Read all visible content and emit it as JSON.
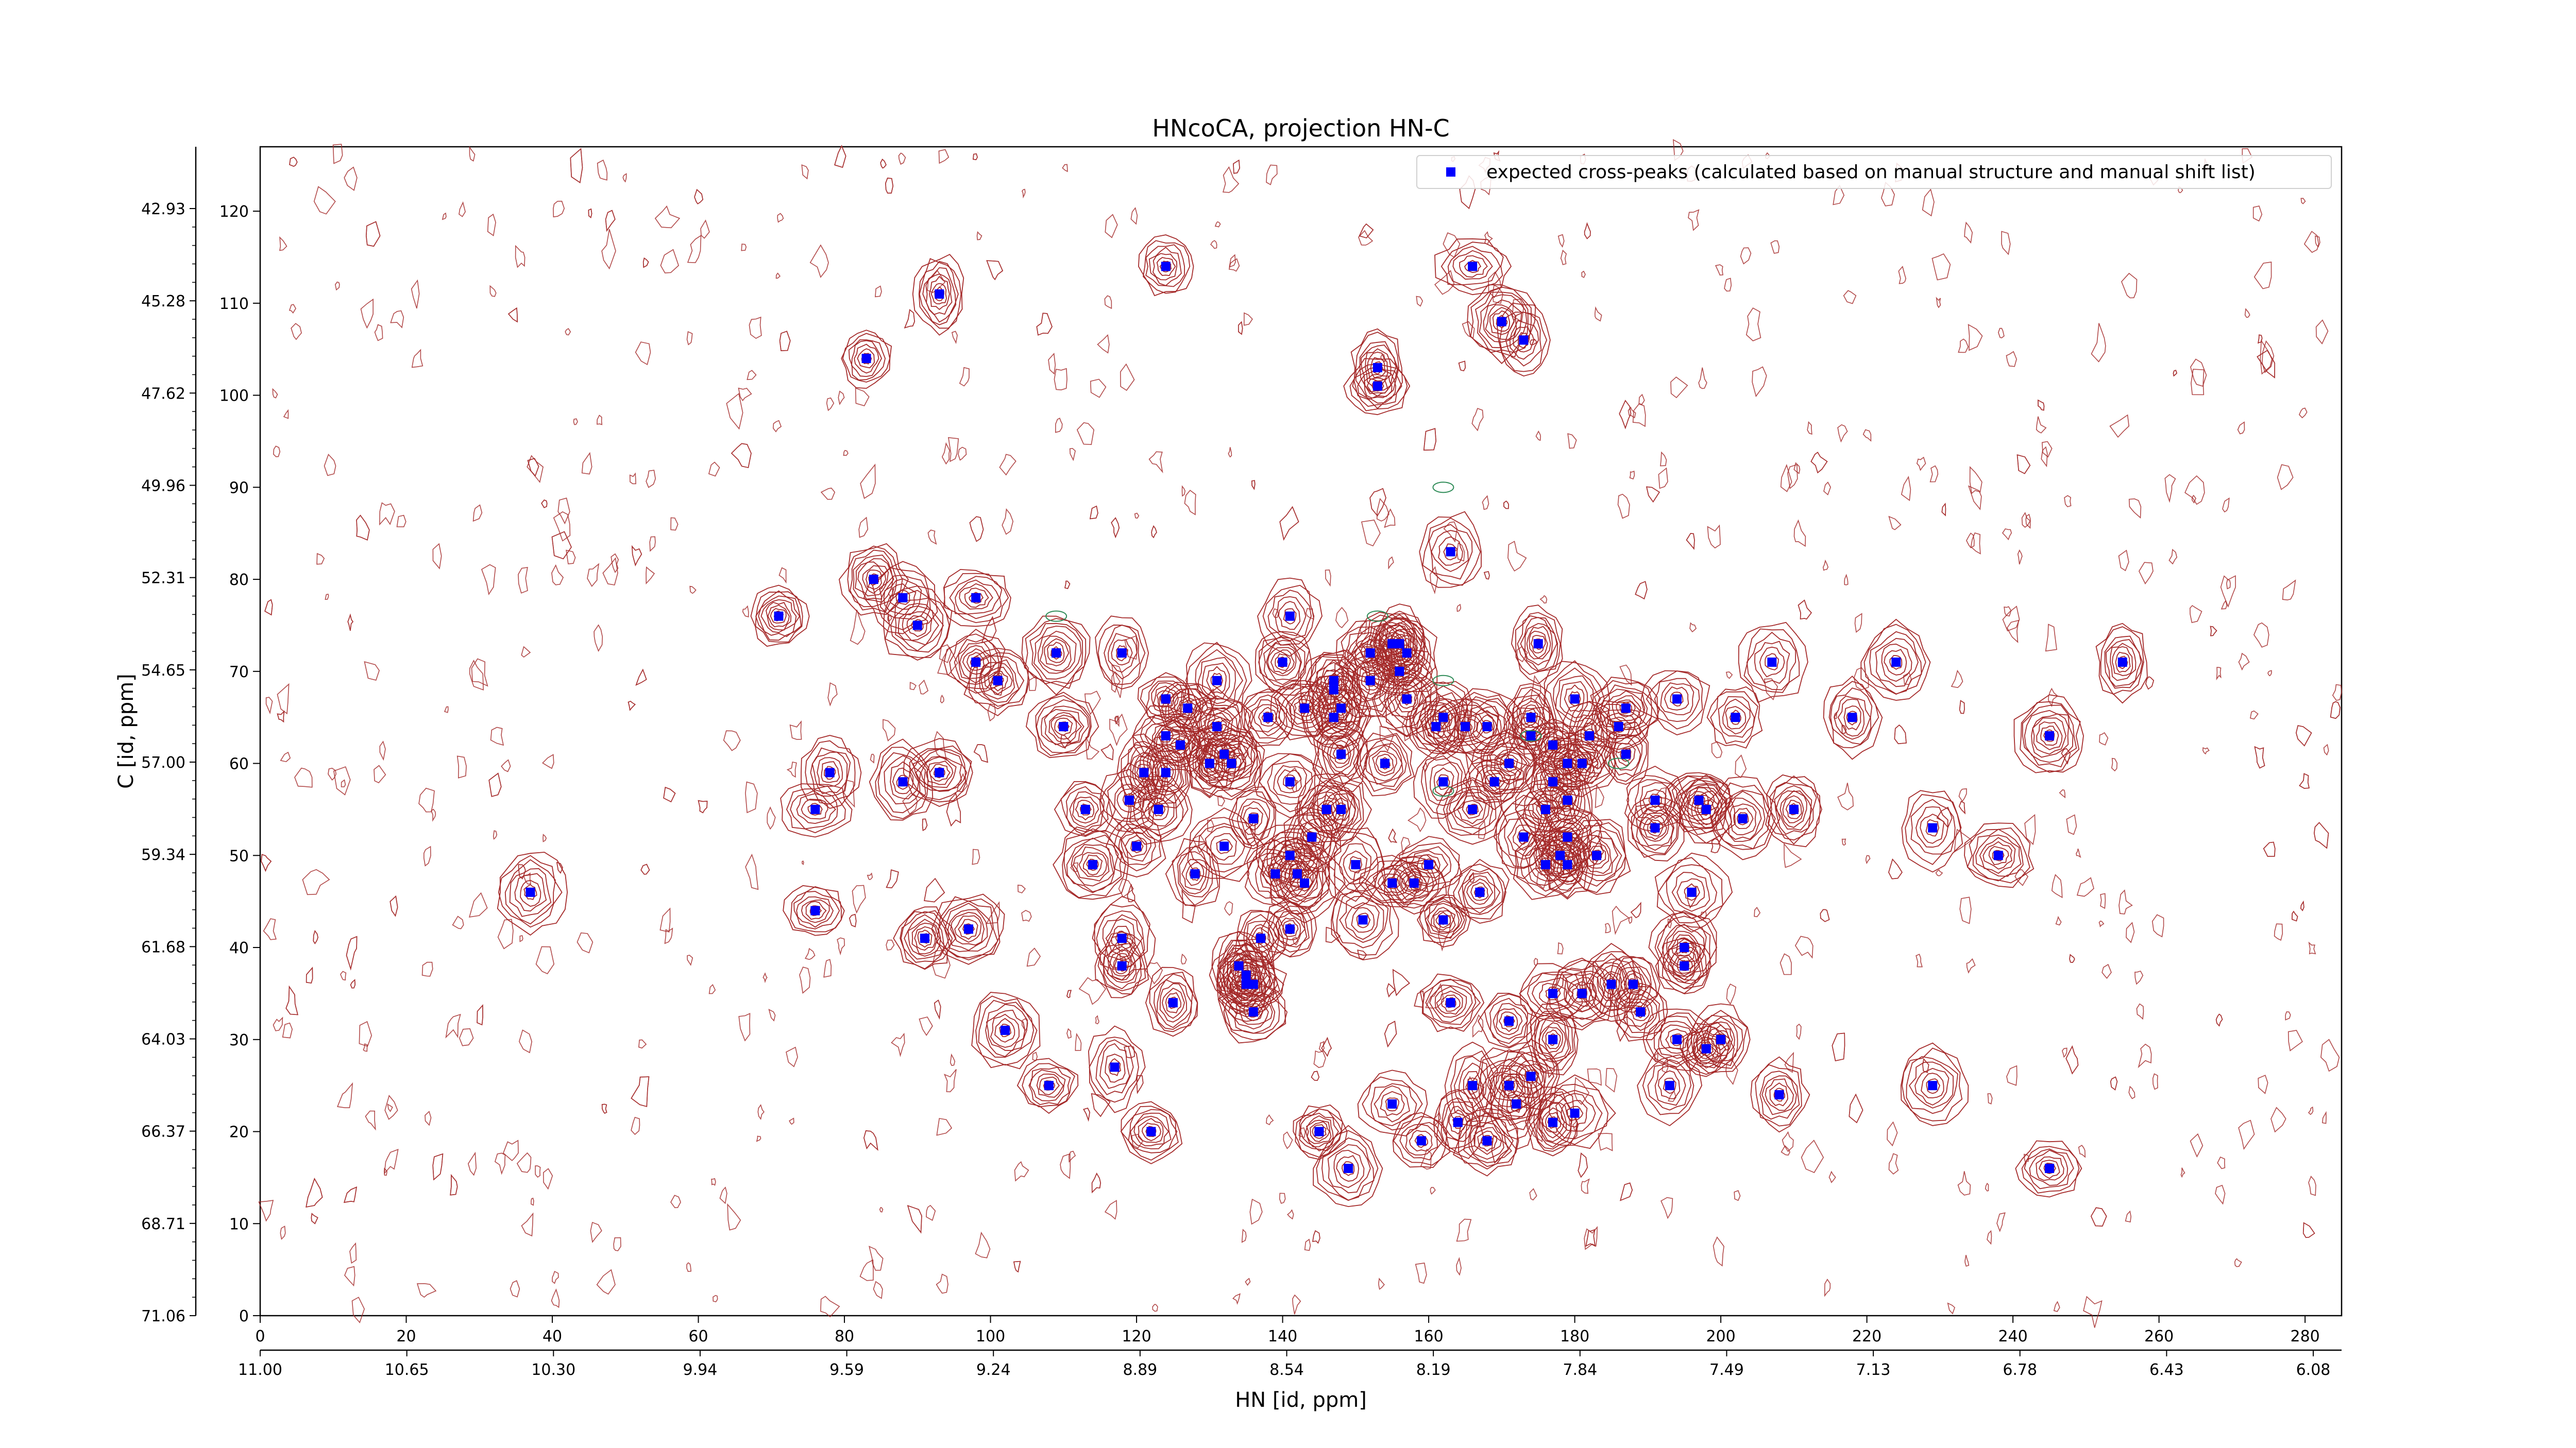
{
  "chart_data": {
    "type": "scatter",
    "title": "HNcoCA, projection HN-C",
    "xlabel": "HN [id, ppm]",
    "ylabel": "C [id, ppm]",
    "xlim": [
      0,
      285
    ],
    "ylim": [
      0,
      127
    ],
    "x_ticks": [
      0,
      20,
      40,
      60,
      80,
      100,
      120,
      140,
      160,
      180,
      200,
      220,
      240,
      260,
      280
    ],
    "y_ticks": [
      0,
      10,
      20,
      30,
      40,
      50,
      60,
      70,
      80,
      90,
      100,
      110,
      120
    ],
    "x_ppm_ticks": [
      "11.00",
      "10.65",
      "10.30",
      "9.94",
      "9.59",
      "9.24",
      "8.89",
      "8.54",
      "8.19",
      "7.84",
      "7.49",
      "7.13",
      "6.78",
      "6.43",
      "6.08"
    ],
    "y_ppm_ticks": [
      "71.06",
      "68.71",
      "66.37",
      "64.03",
      "61.68",
      "59.34",
      "57.00",
      "54.65",
      "52.31",
      "49.96",
      "47.62",
      "45.28",
      "42.93"
    ],
    "legend": {
      "label": "expected cross-peaks (calculated based on manual structure and manual shift list)",
      "position": "top-right"
    },
    "grid": false,
    "colors": {
      "peaks": "#0000ff",
      "contour": "#a52a2a",
      "contour_negative": "#2e8b57"
    },
    "series": [
      {
        "name": "expected cross-peaks (calculated based on manual structure and manual shift list)",
        "points": [
          [
            37,
            46
          ],
          [
            71,
            76
          ],
          [
            76,
            55
          ],
          [
            76,
            44
          ],
          [
            78,
            59
          ],
          [
            83,
            104
          ],
          [
            84,
            80
          ],
          [
            88,
            78
          ],
          [
            88,
            58
          ],
          [
            90,
            75
          ],
          [
            91,
            41
          ],
          [
            93,
            111
          ],
          [
            93,
            59
          ],
          [
            97,
            42
          ],
          [
            98,
            78
          ],
          [
            98,
            71
          ],
          [
            101,
            69
          ],
          [
            102,
            31
          ],
          [
            108,
            25
          ],
          [
            109,
            72
          ],
          [
            110,
            64
          ],
          [
            113,
            55
          ],
          [
            114,
            49
          ],
          [
            117,
            27
          ],
          [
            118,
            72
          ],
          [
            118,
            41
          ],
          [
            118,
            38
          ],
          [
            119,
            56
          ],
          [
            120,
            51
          ],
          [
            121,
            59
          ],
          [
            122,
            20
          ],
          [
            123,
            55
          ],
          [
            124,
            114
          ],
          [
            124,
            67
          ],
          [
            124,
            63
          ],
          [
            124,
            59
          ],
          [
            125,
            34
          ],
          [
            126,
            62
          ],
          [
            127,
            66
          ],
          [
            128,
            48
          ],
          [
            130,
            60
          ],
          [
            131,
            64
          ],
          [
            131,
            69
          ],
          [
            132,
            51
          ],
          [
            132,
            61
          ],
          [
            133,
            60
          ],
          [
            134,
            38
          ],
          [
            135,
            37
          ],
          [
            135,
            36
          ],
          [
            136,
            36
          ],
          [
            136,
            54
          ],
          [
            136,
            33
          ],
          [
            137,
            41
          ],
          [
            138,
            65
          ],
          [
            139,
            48
          ],
          [
            140,
            71
          ],
          [
            141,
            76
          ],
          [
            141,
            50
          ],
          [
            141,
            58
          ],
          [
            141,
            42
          ],
          [
            142,
            48
          ],
          [
            143,
            47
          ],
          [
            143,
            66
          ],
          [
            144,
            52
          ],
          [
            145,
            20
          ],
          [
            146,
            55
          ],
          [
            147,
            69
          ],
          [
            147,
            65
          ],
          [
            147,
            68
          ],
          [
            148,
            55
          ],
          [
            148,
            61
          ],
          [
            148,
            66
          ],
          [
            149,
            16
          ],
          [
            150,
            49
          ],
          [
            151,
            43
          ],
          [
            152,
            72
          ],
          [
            152,
            69
          ],
          [
            153,
            101
          ],
          [
            153,
            103
          ],
          [
            154,
            60
          ],
          [
            155,
            47
          ],
          [
            155,
            23
          ],
          [
            155,
            73
          ],
          [
            156,
            73
          ],
          [
            156,
            70
          ],
          [
            157,
            72
          ],
          [
            157,
            67
          ],
          [
            158,
            47
          ],
          [
            159,
            19
          ],
          [
            160,
            49
          ],
          [
            161,
            64
          ],
          [
            162,
            43
          ],
          [
            162,
            58
          ],
          [
            162,
            65
          ],
          [
            163,
            83
          ],
          [
            163,
            34
          ],
          [
            164,
            21
          ],
          [
            165,
            64
          ],
          [
            166,
            25
          ],
          [
            166,
            55
          ],
          [
            166,
            114
          ],
          [
            167,
            46
          ],
          [
            168,
            19
          ],
          [
            168,
            64
          ],
          [
            169,
            58
          ],
          [
            170,
            108
          ],
          [
            171,
            60
          ],
          [
            171,
            32
          ],
          [
            171,
            25
          ],
          [
            172,
            23
          ],
          [
            173,
            106
          ],
          [
            173,
            52
          ],
          [
            174,
            65
          ],
          [
            174,
            26
          ],
          [
            174,
            63
          ],
          [
            175,
            73
          ],
          [
            176,
            55
          ],
          [
            176,
            49
          ],
          [
            177,
            58
          ],
          [
            177,
            62
          ],
          [
            177,
            35
          ],
          [
            177,
            30
          ],
          [
            177,
            21
          ],
          [
            178,
            50
          ],
          [
            179,
            60
          ],
          [
            179,
            56
          ],
          [
            179,
            49
          ],
          [
            179,
            52
          ],
          [
            180,
            67
          ],
          [
            180,
            22
          ],
          [
            181,
            60
          ],
          [
            181,
            35
          ],
          [
            182,
            63
          ],
          [
            183,
            50
          ],
          [
            185,
            36
          ],
          [
            186,
            64
          ],
          [
            187,
            61
          ],
          [
            187,
            66
          ],
          [
            188,
            36
          ],
          [
            189,
            33
          ],
          [
            191,
            56
          ],
          [
            191,
            53
          ],
          [
            193,
            25
          ],
          [
            194,
            30
          ],
          [
            194,
            67
          ],
          [
            195,
            38
          ],
          [
            195,
            40
          ],
          [
            196,
            46
          ],
          [
            197,
            56
          ],
          [
            198,
            55
          ],
          [
            198,
            29
          ],
          [
            200,
            30
          ],
          [
            202,
            65
          ],
          [
            203,
            54
          ],
          [
            207,
            71
          ],
          [
            208,
            24
          ],
          [
            210,
            55
          ],
          [
            218,
            65
          ],
          [
            224,
            71
          ],
          [
            229,
            53
          ],
          [
            229,
            25
          ],
          [
            238,
            50
          ],
          [
            245,
            63
          ],
          [
            245,
            16
          ],
          [
            255,
            71
          ]
        ]
      }
    ]
  }
}
